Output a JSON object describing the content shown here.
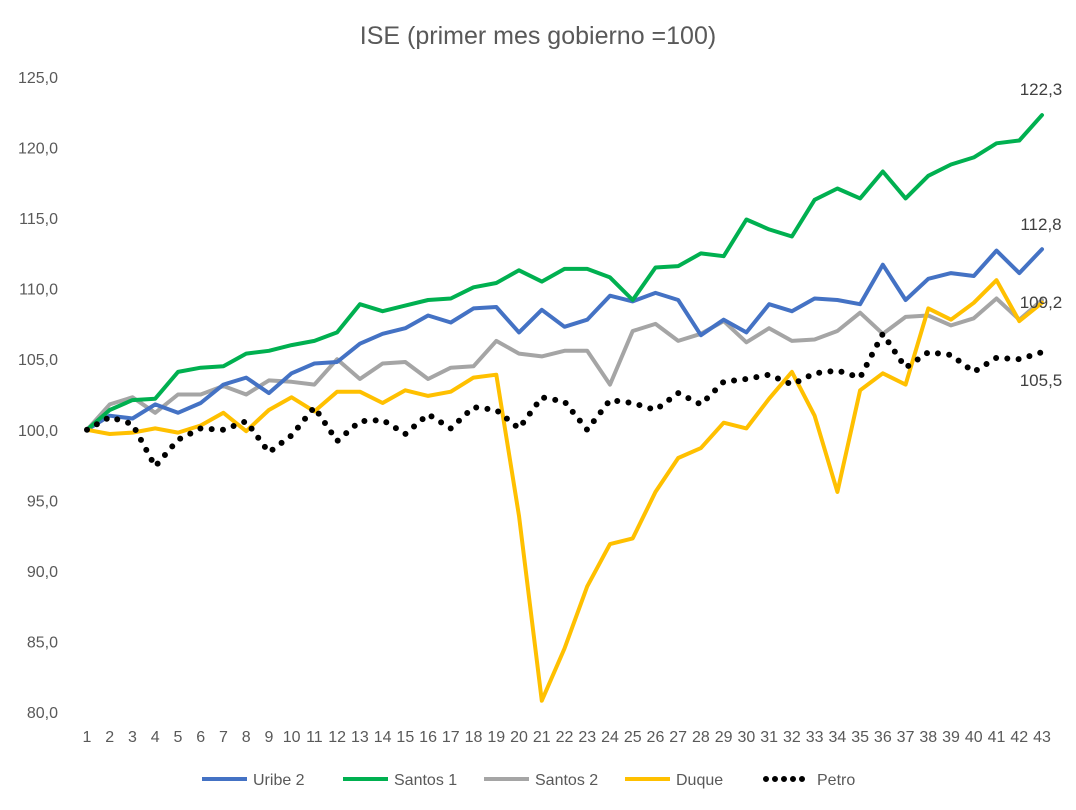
{
  "chart_data": {
    "type": "line",
    "title": "ISE (primer mes gobierno =100)",
    "xlabel": "",
    "ylabel": "",
    "ylim": [
      80,
      125
    ],
    "y_ticks": [
      "80,0",
      "85,0",
      "90,0",
      "95,0",
      "100,0",
      "105,0",
      "110,0",
      "115,0",
      "120,0",
      "125,0"
    ],
    "x": [
      1,
      2,
      3,
      4,
      5,
      6,
      7,
      8,
      9,
      10,
      11,
      12,
      13,
      14,
      15,
      16,
      17,
      18,
      19,
      20,
      21,
      22,
      23,
      24,
      25,
      26,
      27,
      28,
      29,
      30,
      31,
      32,
      33,
      34,
      35,
      36,
      37,
      38,
      39,
      40,
      41,
      42,
      43
    ],
    "grid": false,
    "legend_position": "bottom",
    "series": [
      {
        "name": "Uribe 2",
        "color": "#4472C4",
        "style": "solid",
        "values": [
          100.0,
          101.0,
          100.8,
          101.8,
          101.2,
          101.9,
          103.2,
          103.7,
          102.6,
          104.0,
          104.7,
          104.8,
          106.1,
          106.8,
          107.2,
          108.1,
          107.6,
          108.6,
          108.7,
          106.9,
          108.5,
          107.3,
          107.8,
          109.5,
          109.1,
          109.7,
          109.2,
          106.7,
          107.8,
          106.9,
          108.9,
          108.4,
          109.3,
          109.2,
          108.9,
          111.7,
          109.2,
          110.7,
          111.1,
          110.9,
          112.7,
          111.1,
          112.8
        ],
        "end_label": "112,8"
      },
      {
        "name": "Santos 1",
        "color": "#00B050",
        "style": "solid",
        "values": [
          100.0,
          101.4,
          102.1,
          102.2,
          104.1,
          104.4,
          104.5,
          105.4,
          105.6,
          106.0,
          106.3,
          106.9,
          108.9,
          108.4,
          108.8,
          109.2,
          109.3,
          110.1,
          110.4,
          111.3,
          110.5,
          111.4,
          111.4,
          110.8,
          109.2,
          111.5,
          111.6,
          112.5,
          112.3,
          114.9,
          114.2,
          113.7,
          116.3,
          117.1,
          116.4,
          118.3,
          116.4,
          118.0,
          118.8,
          119.3,
          120.3,
          120.5,
          122.3
        ],
        "end_label": "122,3"
      },
      {
        "name": "Santos 2",
        "color": "#A5A5A5",
        "style": "solid",
        "values": [
          100.0,
          101.8,
          102.3,
          101.2,
          102.5,
          102.5,
          103.1,
          102.5,
          103.5,
          103.4,
          103.2,
          105.0,
          103.6,
          104.7,
          104.8,
          103.6,
          104.4,
          104.5,
          106.3,
          105.4,
          105.2,
          105.6,
          105.6,
          103.2,
          107.0,
          107.5,
          106.3,
          106.8,
          107.7,
          106.2,
          107.2,
          106.3,
          106.4,
          107.0,
          108.3,
          106.8,
          108.0,
          108.1,
          107.4,
          107.9,
          109.3,
          107.8,
          109.2
        ],
        "end_label": "109,2"
      },
      {
        "name": "Duque",
        "color": "#FFC000",
        "style": "solid",
        "values": [
          100.0,
          99.7,
          99.8,
          100.1,
          99.8,
          100.3,
          101.2,
          99.9,
          101.4,
          102.3,
          101.3,
          102.7,
          102.7,
          101.9,
          102.8,
          102.4,
          102.7,
          103.7,
          103.9,
          93.9,
          80.8,
          84.5,
          88.9,
          91.9,
          92.3,
          95.6,
          98.0,
          98.7,
          100.5,
          100.1,
          102.2,
          104.1,
          101.0,
          95.6,
          102.8,
          104.0,
          103.2,
          108.6,
          107.8,
          109.0,
          110.6,
          107.7,
          109.0
        ],
        "end_label": ""
      },
      {
        "name": "Petro",
        "color": "#000000",
        "style": "dotted",
        "values": [
          100.0,
          100.9,
          100.4,
          97.4,
          99.3,
          100.1,
          100.0,
          100.6,
          98.4,
          99.6,
          101.6,
          99.2,
          100.6,
          100.7,
          99.7,
          101.1,
          100.1,
          101.6,
          101.4,
          100.1,
          102.3,
          102.0,
          100.0,
          102.1,
          101.9,
          101.4,
          102.6,
          101.8,
          103.4,
          103.6,
          103.9,
          103.2,
          104.0,
          104.2,
          103.7,
          106.8,
          104.4,
          105.5,
          105.3,
          104.1,
          105.1,
          105.0,
          105.5
        ],
        "end_label": "105,5"
      }
    ]
  }
}
